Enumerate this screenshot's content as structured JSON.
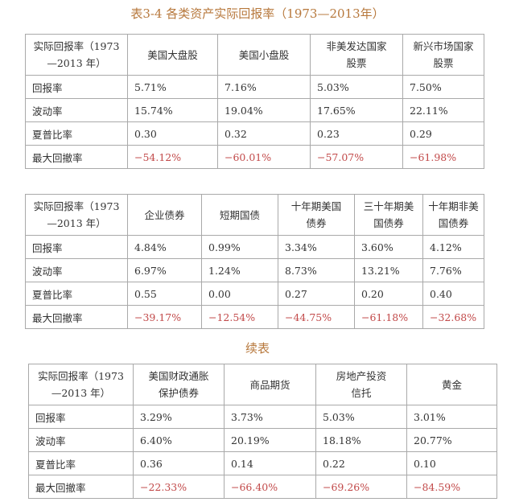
{
  "title": "表3-4 各类资产实际回报率（1973—2013年）",
  "continued_label": "续表",
  "row_labels": [
    "回报率",
    "波动率",
    "夏普比率",
    "最大回撤率"
  ],
  "corner_header": [
    "实际回报率（1973",
    "—2013 年）"
  ],
  "colors": {
    "title": "#b7783c",
    "negative": "#c24a4a",
    "border": "#a9a9a9"
  },
  "tables": [
    {
      "headers": [
        [
          "美国大盘股",
          ""
        ],
        [
          "美国小盘股",
          ""
        ],
        [
          "非美发达国家",
          "股票"
        ],
        [
          "新兴市场国家",
          "股票"
        ]
      ],
      "rows": [
        [
          "5.71%",
          "7.16%",
          "5.03%",
          "7.50%"
        ],
        [
          "15.74%",
          "19.04%",
          "17.65%",
          "22.11%"
        ],
        [
          "0.30",
          "0.32",
          "0.23",
          "0.29"
        ],
        [
          "−54.12%",
          "−60.01%",
          "−57.07%",
          "−61.98%"
        ]
      ]
    },
    {
      "headers": [
        [
          "企业债券",
          ""
        ],
        [
          "短期国债",
          ""
        ],
        [
          "十年期美国",
          "债券"
        ],
        [
          "三十年期美",
          "国债券"
        ],
        [
          "十年期非美",
          "国债券"
        ]
      ],
      "rows": [
        [
          "4.84%",
          "0.99%",
          "3.34%",
          "3.60%",
          "4.12%"
        ],
        [
          "6.97%",
          "1.24%",
          "8.73%",
          "13.21%",
          "7.76%"
        ],
        [
          "0.55",
          "0.00",
          "0.27",
          "0.20",
          "0.40"
        ],
        [
          "−39.17%",
          "−12.54%",
          "−44.75%",
          "−61.18%",
          "−32.68%"
        ]
      ]
    },
    {
      "headers": [
        [
          "美国财政通胀",
          "保护债券"
        ],
        [
          "商品期货",
          ""
        ],
        [
          "房地产投资",
          "信托"
        ],
        [
          "黄金",
          ""
        ]
      ],
      "rows": [
        [
          "3.29%",
          "3.73%",
          "5.03%",
          "3.01%"
        ],
        [
          "6.40%",
          "20.19%",
          "18.18%",
          "20.77%"
        ],
        [
          "0.36",
          "0.14",
          "0.22",
          "0.10"
        ],
        [
          "−22.33%",
          "−66.40%",
          "−69.26%",
          "−84.59%"
        ]
      ]
    }
  ]
}
